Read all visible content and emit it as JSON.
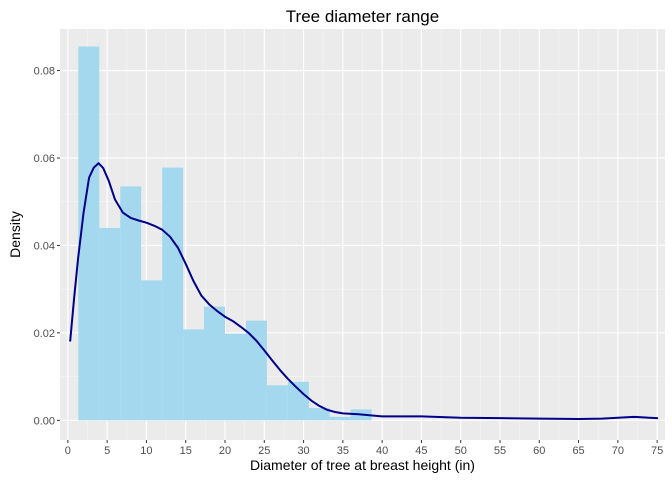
{
  "chart_data": {
    "type": "histogram",
    "title": "Tree diameter range",
    "xlabel": "Diameter of tree at breast height (in)",
    "ylabel": "Density",
    "xlim": [
      -1,
      76
    ],
    "ylim": [
      -0.0045,
      0.0895
    ],
    "x_ticks": [
      0,
      5,
      10,
      15,
      20,
      25,
      30,
      35,
      40,
      45,
      50,
      55,
      60,
      65,
      70,
      75
    ],
    "x_tick_labels": [
      "0",
      "5",
      "10",
      "15",
      "20",
      "25",
      "30",
      "35",
      "40",
      "45",
      "50",
      "55",
      "60",
      "65",
      "70",
      "75"
    ],
    "y_ticks": [
      0,
      0.02,
      0.04,
      0.06,
      0.08
    ],
    "y_tick_labels": [
      "0.00",
      "0.02",
      "0.04",
      "0.06",
      "0.08"
    ],
    "grid": true,
    "bin_width": 2.67,
    "bins": [
      {
        "start": 1.33,
        "end": 4.0,
        "density": 0.0855
      },
      {
        "start": 4.0,
        "end": 6.67,
        "density": 0.044
      },
      {
        "start": 6.67,
        "end": 9.33,
        "density": 0.0535
      },
      {
        "start": 9.33,
        "end": 12.0,
        "density": 0.032
      },
      {
        "start": 12.0,
        "end": 14.67,
        "density": 0.0578
      },
      {
        "start": 14.67,
        "end": 17.33,
        "density": 0.0208
      },
      {
        "start": 17.33,
        "end": 20.0,
        "density": 0.026
      },
      {
        "start": 20.0,
        "end": 22.67,
        "density": 0.0198
      },
      {
        "start": 22.67,
        "end": 25.33,
        "density": 0.0228
      },
      {
        "start": 25.33,
        "end": 28.0,
        "density": 0.008
      },
      {
        "start": 28.0,
        "end": 30.67,
        "density": 0.0088
      },
      {
        "start": 30.67,
        "end": 33.33,
        "density": 0.0028
      },
      {
        "start": 33.33,
        "end": 36.0,
        "density": 0.0008
      },
      {
        "start": 36.0,
        "end": 38.67,
        "density": 0.0025
      }
    ],
    "density_curve": {
      "x": [
        0.3,
        0.8,
        1.3,
        2.0,
        2.7,
        3.3,
        3.9,
        4.5,
        5.2,
        6.0,
        7.0,
        8.0,
        9.0,
        10.0,
        11.0,
        12.0,
        13.0,
        14.0,
        15.0,
        16.0,
        17.0,
        18.0,
        19.0,
        20.0,
        21.0,
        22.0,
        23.0,
        24.0,
        25.0,
        26.0,
        27.0,
        28.0,
        29.0,
        30.0,
        31.0,
        32.0,
        33.0,
        34.0,
        35.0,
        37.0,
        40.0,
        45.0,
        50.0,
        55.0,
        60.0,
        65.0,
        68.0,
        70.0,
        72.0,
        74.0,
        75.0
      ],
      "y": [
        0.0182,
        0.028,
        0.037,
        0.0475,
        0.0555,
        0.0578,
        0.0588,
        0.0577,
        0.0548,
        0.0505,
        0.0475,
        0.0463,
        0.0457,
        0.0452,
        0.0445,
        0.0436,
        0.042,
        0.0395,
        0.0358,
        0.0318,
        0.0285,
        0.0265,
        0.025,
        0.0237,
        0.0227,
        0.0214,
        0.02,
        0.0182,
        0.016,
        0.0137,
        0.0115,
        0.0095,
        0.0077,
        0.006,
        0.0045,
        0.0033,
        0.0024,
        0.0019,
        0.0016,
        0.0014,
        0.0009,
        0.0009,
        0.0006,
        0.0005,
        0.0004,
        0.0003,
        0.0004,
        0.0006,
        0.0008,
        0.0006,
        0.0005
      ]
    },
    "colors": {
      "panel_background": "#ebebeb",
      "grid_major": "#ffffff",
      "grid_minor": "#f5f5f5",
      "bar_fill": "#a3d8ee",
      "curve": "#00008b",
      "tick_text": "#4d4d4d",
      "tick_mark": "#333333",
      "title_text": "#000000"
    }
  }
}
